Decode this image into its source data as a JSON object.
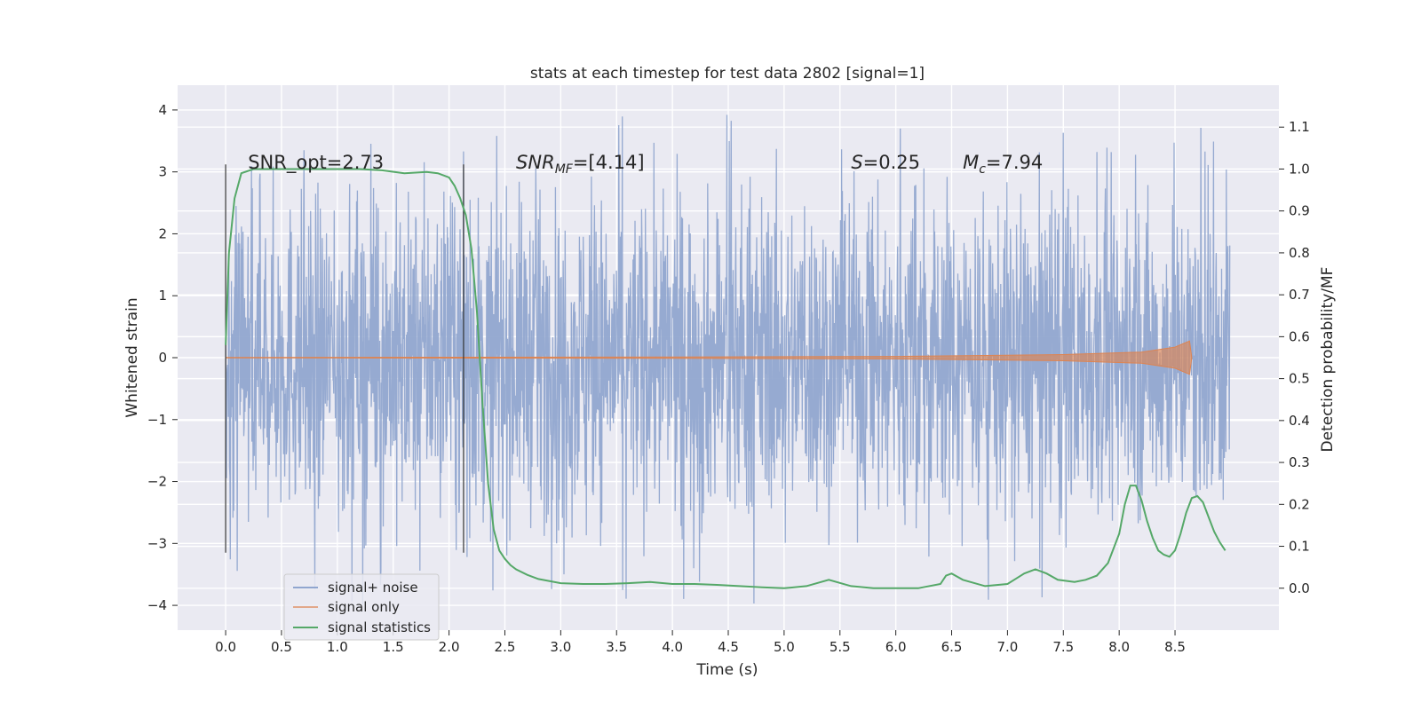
{
  "chart_data": {
    "type": "line",
    "title": "stats at each timestep for test data 2802 [signal=1]",
    "xlabel": "Time (s)",
    "ylabel": "Whitened strain",
    "y2label": "Detection probability/MF",
    "xlim": [
      -0.43,
      9.43
    ],
    "ylim": [
      -4.4,
      4.4
    ],
    "y2lim": [
      -0.1,
      1.2
    ],
    "xticks": [
      0.0,
      0.5,
      1.0,
      1.5,
      2.0,
      2.5,
      3.0,
      3.5,
      4.0,
      4.5,
      5.0,
      5.5,
      6.0,
      6.5,
      7.0,
      7.5,
      8.0,
      8.5
    ],
    "xtick_labels": [
      "0.0",
      "0.5",
      "1.0",
      "1.5",
      "2.0",
      "2.5",
      "3.0",
      "3.5",
      "4.0",
      "4.5",
      "5.0",
      "5.5",
      "6.0",
      "6.5",
      "7.0",
      "7.5",
      "8.0",
      "8.5"
    ],
    "yticks": [
      -4,
      -3,
      -2,
      -1,
      0,
      1,
      2,
      3,
      4
    ],
    "ytick_labels": [
      "−4",
      "−3",
      "−2",
      "−1",
      "0",
      "1",
      "2",
      "3",
      "4"
    ],
    "y2ticks": [
      0.0,
      0.1,
      0.2,
      0.3,
      0.4,
      0.5,
      0.6,
      0.7,
      0.8,
      0.9,
      1.0,
      1.1
    ],
    "y2tick_labels": [
      "0.0",
      "0.1",
      "0.2",
      "0.3",
      "0.4",
      "0.5",
      "0.6",
      "0.7",
      "0.8",
      "0.9",
      "1.0",
      "1.1"
    ],
    "grid": true,
    "legend_position": "lower-left",
    "vertical_markers": [
      0.0,
      2.13
    ],
    "noise": {
      "name": "signal+ noise",
      "color": "#91a6cf",
      "x_start": 0.0,
      "x_end": 8.99,
      "typical_amplitude": 1.25,
      "peak_max": 4.0,
      "peak_min": -4.0
    },
    "signal": {
      "name": "signal only",
      "color": "#dd8452",
      "x_start": 0.0,
      "x_end": 8.65,
      "amplitude_envelope": [
        {
          "x": 0.0,
          "amp": 0.005
        },
        {
          "x": 4.0,
          "amp": 0.01
        },
        {
          "x": 6.0,
          "amp": 0.02
        },
        {
          "x": 7.5,
          "amp": 0.05
        },
        {
          "x": 8.2,
          "amp": 0.09
        },
        {
          "x": 8.5,
          "amp": 0.17
        },
        {
          "x": 8.63,
          "amp": 0.27
        },
        {
          "x": 8.65,
          "amp": 0.0
        }
      ]
    },
    "series": [
      {
        "name": "signal statistics",
        "color": "#55a868",
        "axis": "right",
        "x": [
          0.0,
          0.03,
          0.08,
          0.14,
          0.25,
          0.5,
          0.8,
          1.0,
          1.2,
          1.4,
          1.6,
          1.8,
          1.9,
          2.0,
          2.05,
          2.1,
          2.15,
          2.2,
          2.25,
          2.3,
          2.35,
          2.4,
          2.45,
          2.5,
          2.55,
          2.6,
          2.7,
          2.8,
          3.0,
          3.2,
          3.4,
          3.6,
          3.8,
          4.0,
          4.2,
          4.4,
          4.6,
          4.8,
          5.0,
          5.2,
          5.4,
          5.6,
          5.8,
          6.0,
          6.2,
          6.4,
          6.45,
          6.5,
          6.6,
          6.8,
          7.0,
          7.15,
          7.25,
          7.35,
          7.45,
          7.6,
          7.7,
          7.8,
          7.9,
          8.0,
          8.05,
          8.1,
          8.15,
          8.2,
          8.25,
          8.3,
          8.35,
          8.4,
          8.45,
          8.5,
          8.55,
          8.6,
          8.65,
          8.7,
          8.75,
          8.8,
          8.85,
          8.9,
          8.95
        ],
        "y": [
          0.58,
          0.8,
          0.93,
          0.99,
          1.0,
          1.0,
          1.0,
          1.0,
          1.0,
          0.997,
          0.99,
          0.993,
          0.99,
          0.98,
          0.96,
          0.93,
          0.89,
          0.81,
          0.66,
          0.44,
          0.25,
          0.14,
          0.09,
          0.07,
          0.055,
          0.045,
          0.032,
          0.022,
          0.012,
          0.01,
          0.01,
          0.012,
          0.015,
          0.01,
          0.01,
          0.008,
          0.005,
          0.002,
          0.0,
          0.005,
          0.02,
          0.005,
          0.0,
          0.0,
          0.0,
          0.01,
          0.03,
          0.035,
          0.02,
          0.005,
          0.01,
          0.035,
          0.045,
          0.035,
          0.02,
          0.015,
          0.02,
          0.03,
          0.06,
          0.13,
          0.2,
          0.245,
          0.245,
          0.21,
          0.16,
          0.12,
          0.09,
          0.08,
          0.075,
          0.09,
          0.13,
          0.18,
          0.215,
          0.22,
          0.205,
          0.17,
          0.135,
          0.11,
          0.09
        ]
      }
    ],
    "annotations": [
      {
        "x": 0.2,
        "y": 3.05,
        "parts": [
          {
            "text": "SNR_opt=2.73"
          }
        ]
      },
      {
        "x": 2.6,
        "y": 3.05,
        "parts": [
          {
            "text": "SNR",
            "style": "italic"
          },
          {
            "text": "MF",
            "style": "italic-sub"
          },
          {
            "text": "=[4.14]"
          }
        ]
      },
      {
        "x": 5.6,
        "y": 3.05,
        "parts": [
          {
            "text": "S",
            "style": "italic"
          },
          {
            "text": "=0.25"
          }
        ]
      },
      {
        "x": 6.6,
        "y": 3.05,
        "parts": [
          {
            "text": "M",
            "style": "italic"
          },
          {
            "text": "c",
            "style": "italic-sub"
          },
          {
            "text": "=7.94"
          }
        ]
      }
    ],
    "colors": {
      "plot_background": "#eaeaf2",
      "grid": "#ffffff",
      "marker_line": "#333333"
    }
  }
}
